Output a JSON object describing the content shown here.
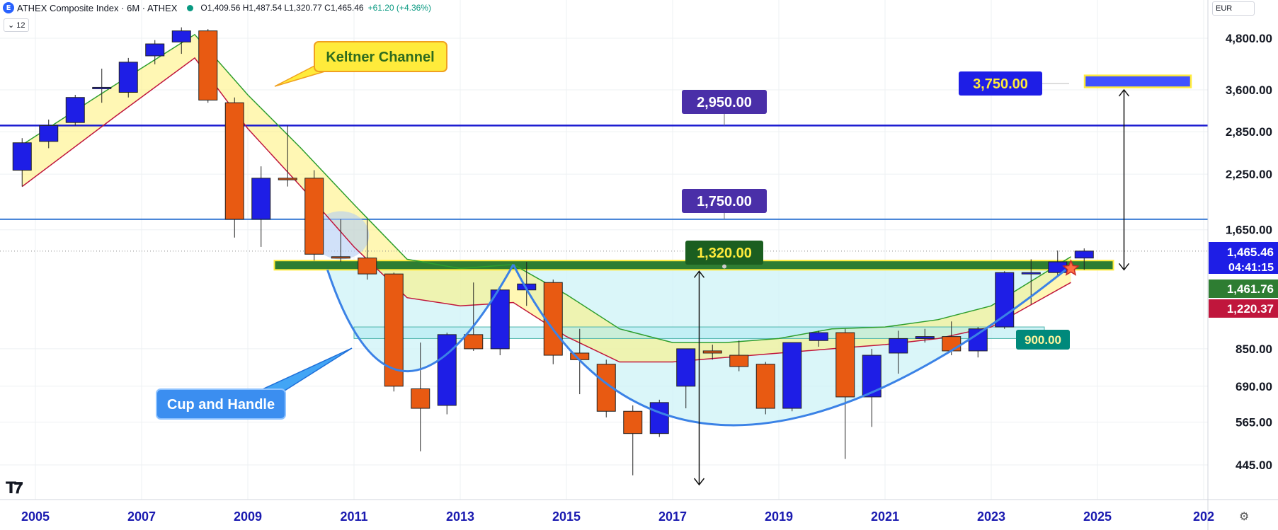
{
  "header": {
    "logo_letter": "E",
    "title": "ATHEX Composite Index · 6M · ATHEX",
    "ohlc": "O1,409.56  H1,487.54  L1,320.77  C1,465.46",
    "change": "+61.20 (+4.36%)",
    "interval": "12",
    "currency": "EUR"
  },
  "colors": {
    "bull": "#1e1ee6",
    "bear": "#e85a12",
    "keltner_upper": "#2e9e2e",
    "keltner_lower": "#c0163c",
    "keltner_fill": "#fff176",
    "cup_fill": "#cdf3f7",
    "cup_line": "#3b82e6",
    "resistance_band": "#2e7d32"
  },
  "chart_data": {
    "type": "candlestick",
    "period": "6M",
    "x_ticks": [
      "2005",
      "2007",
      "2009",
      "2011",
      "2013",
      "2015",
      "2017",
      "2019",
      "2021",
      "2023",
      "2025",
      "202"
    ],
    "y_ticks": [
      4800,
      3600,
      2850,
      2250,
      1650,
      850,
      690,
      565,
      445
    ],
    "y_tick_labels": [
      "4,800.00",
      "3,600.00",
      "2,850.00",
      "2,250.00",
      "1,650.00",
      "850.00",
      "690.00",
      "565.00",
      "445.00"
    ],
    "candles": [
      {
        "t": 2004.75,
        "o": 2300,
        "h": 2750,
        "l": 2100,
        "c": 2680
      },
      {
        "t": 2005.25,
        "o": 2700,
        "h": 3050,
        "l": 2600,
        "c": 2950
      },
      {
        "t": 2005.75,
        "o": 3000,
        "h": 3500,
        "l": 2950,
        "c": 3450
      },
      {
        "t": 2006.25,
        "o": 3650,
        "h": 4050,
        "l": 3350,
        "c": 3650
      },
      {
        "t": 2006.75,
        "o": 3550,
        "h": 4300,
        "l": 3450,
        "c": 4200
      },
      {
        "t": 2007.25,
        "o": 4350,
        "h": 4750,
        "l": 4150,
        "c": 4650
      },
      {
        "t": 2007.75,
        "o": 4700,
        "h": 5100,
        "l": 4400,
        "c": 5000
      },
      {
        "t": 2008.25,
        "o": 5000,
        "h": 5050,
        "l": 3350,
        "c": 3400
      },
      {
        "t": 2008.75,
        "o": 3350,
        "h": 3450,
        "l": 1580,
        "c": 1750
      },
      {
        "t": 2009.25,
        "o": 1750,
        "h": 2350,
        "l": 1500,
        "c": 2200
      },
      {
        "t": 2009.75,
        "o": 2200,
        "h": 2950,
        "l": 2100,
        "c": 2180
      },
      {
        "t": 2010.25,
        "o": 2200,
        "h": 2300,
        "l": 1390,
        "c": 1440
      },
      {
        "t": 2010.75,
        "o": 1420,
        "h": 1750,
        "l": 1380,
        "c": 1410
      },
      {
        "t": 2011.25,
        "o": 1410,
        "h": 1750,
        "l": 1250,
        "c": 1290
      },
      {
        "t": 2011.75,
        "o": 1290,
        "h": 1300,
        "l": 670,
        "c": 690
      },
      {
        "t": 2012.25,
        "o": 680,
        "h": 880,
        "l": 480,
        "c": 610
      },
      {
        "t": 2012.75,
        "o": 620,
        "h": 930,
        "l": 590,
        "c": 920
      },
      {
        "t": 2013.25,
        "o": 920,
        "h": 1230,
        "l": 840,
        "c": 850
      },
      {
        "t": 2013.75,
        "o": 850,
        "h": 1200,
        "l": 820,
        "c": 1180
      },
      {
        "t": 2014.25,
        "o": 1180,
        "h": 1380,
        "l": 1080,
        "c": 1220
      },
      {
        "t": 2014.75,
        "o": 1230,
        "h": 1250,
        "l": 780,
        "c": 820
      },
      {
        "t": 2015.25,
        "o": 830,
        "h": 950,
        "l": 660,
        "c": 800
      },
      {
        "t": 2015.75,
        "o": 780,
        "h": 800,
        "l": 580,
        "c": 600
      },
      {
        "t": 2016.25,
        "o": 600,
        "h": 620,
        "l": 420,
        "c": 530
      },
      {
        "t": 2016.75,
        "o": 530,
        "h": 640,
        "l": 520,
        "c": 630
      },
      {
        "t": 2017.25,
        "o": 690,
        "h": 850,
        "l": 610,
        "c": 850
      },
      {
        "t": 2017.75,
        "o": 840,
        "h": 870,
        "l": 800,
        "c": 830
      },
      {
        "t": 2018.25,
        "o": 820,
        "h": 890,
        "l": 750,
        "c": 770
      },
      {
        "t": 2018.75,
        "o": 780,
        "h": 790,
        "l": 590,
        "c": 610
      },
      {
        "t": 2019.25,
        "o": 610,
        "h": 880,
        "l": 600,
        "c": 880
      },
      {
        "t": 2019.75,
        "o": 890,
        "h": 940,
        "l": 860,
        "c": 930
      },
      {
        "t": 2020.25,
        "o": 930,
        "h": 950,
        "l": 460,
        "c": 650
      },
      {
        "t": 2020.75,
        "o": 650,
        "h": 850,
        "l": 550,
        "c": 820
      },
      {
        "t": 2021.25,
        "o": 830,
        "h": 940,
        "l": 740,
        "c": 900
      },
      {
        "t": 2021.75,
        "o": 900,
        "h": 950,
        "l": 880,
        "c": 910
      },
      {
        "t": 2022.25,
        "o": 910,
        "h": 990,
        "l": 820,
        "c": 840
      },
      {
        "t": 2022.75,
        "o": 840,
        "h": 960,
        "l": 810,
        "c": 950
      },
      {
        "t": 2023.25,
        "o": 960,
        "h": 1310,
        "l": 950,
        "c": 1300
      },
      {
        "t": 2023.75,
        "o": 1290,
        "h": 1400,
        "l": 1090,
        "c": 1300
      },
      {
        "t": 2024.25,
        "o": 1300,
        "h": 1470,
        "l": 1270,
        "c": 1380
      },
      {
        "t": 2024.75,
        "o": 1409.56,
        "h": 1487.54,
        "l": 1320.77,
        "c": 1465.46
      }
    ],
    "keltner_upper": [
      [
        2004.75,
        2650
      ],
      [
        2006.5,
        3700
      ],
      [
        2008,
        4900
      ],
      [
        2009,
        3500
      ],
      [
        2010,
        2600
      ],
      [
        2011,
        1900
      ],
      [
        2012,
        1400
      ],
      [
        2013,
        1330
      ],
      [
        2014,
        1360
      ],
      [
        2015,
        1150
      ],
      [
        2016,
        950
      ],
      [
        2017,
        880
      ],
      [
        2018,
        880
      ],
      [
        2019,
        900
      ],
      [
        2020,
        950
      ],
      [
        2021,
        960
      ],
      [
        2022,
        1000
      ],
      [
        2023,
        1080
      ],
      [
        2024.5,
        1420
      ]
    ],
    "keltner_lower": [
      [
        2004.75,
        2100
      ],
      [
        2006.5,
        3100
      ],
      [
        2008,
        4300
      ],
      [
        2009,
        2900
      ],
      [
        2010,
        2100
      ],
      [
        2011,
        1500
      ],
      [
        2012,
        1130
      ],
      [
        2013,
        1080
      ],
      [
        2014,
        1100
      ],
      [
        2015,
        910
      ],
      [
        2016,
        790
      ],
      [
        2017,
        790
      ],
      [
        2018,
        810
      ],
      [
        2019,
        830
      ],
      [
        2020,
        850
      ],
      [
        2021,
        870
      ],
      [
        2022,
        900
      ],
      [
        2023,
        960
      ],
      [
        2024.5,
        1230
      ]
    ],
    "horizontal_levels": [
      {
        "value": 2950,
        "label": "2,950.00"
      },
      {
        "value": 1750,
        "label": "1,750.00"
      },
      {
        "value": 1320,
        "label": "1,320.00"
      },
      {
        "value": 900,
        "label": "900.00"
      },
      {
        "value": 3750,
        "label": "3,750.00"
      }
    ],
    "price_labels": [
      {
        "label": "1,465.46",
        "sub": "04:41:15",
        "color": "#1e1ee6"
      },
      {
        "label": "1,461.76",
        "color": "#2e7d32"
      },
      {
        "label": "1,220.37",
        "color": "#c0163c"
      }
    ],
    "annotations": [
      {
        "text": "Keltner Channel"
      },
      {
        "text": "Cup and Handle"
      }
    ]
  }
}
